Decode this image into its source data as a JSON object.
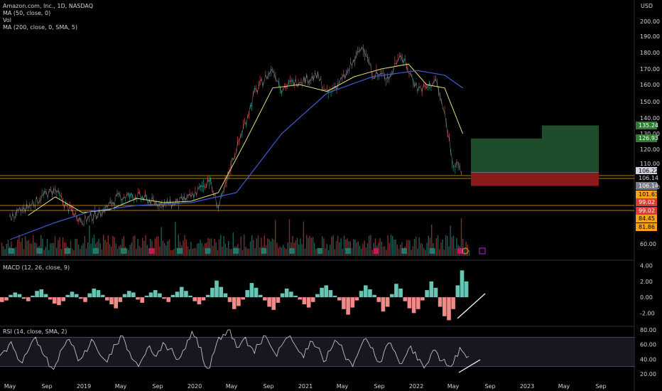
{
  "header": {
    "symbol_line": "Amazon.com, Inc., 1D, NASDAQ",
    "indicators": [
      "MA (50, close, 0)",
      "Vol",
      "MA (200, close, 0, SMA, 5)"
    ],
    "currency": "USD"
  },
  "panes": {
    "macd_label": "MACD (12, 26, close, 9)",
    "rsi_label": "RSI (14, close, SMA, 2)"
  },
  "colors": {
    "background": "#000000",
    "price_line": "#d1d4dc",
    "ma50": "#e4e07a",
    "ma200": "#3f5bd6",
    "bull": "#26a69a",
    "bear": "#ef5350",
    "orange_line": "#f7a21b",
    "profit_zone": "#1e4d2b",
    "loss_zone": "#8b1a1a"
  },
  "chart_data": [
    {
      "type": "line",
      "name": "price",
      "x_ticks": [
        "May",
        "Sep",
        "2019",
        "May",
        "Sep",
        "2020",
        "May",
        "Sep",
        "2021",
        "May",
        "Sep",
        "2022",
        "May",
        "Sep",
        "2023",
        "May",
        "Sep"
      ],
      "y_ticks": [
        60.0,
        100.0,
        110.0,
        120.0,
        130.0,
        140.0,
        150.0,
        160.0,
        170.0,
        180.0,
        190.0,
        200.0
      ],
      "y_range": [
        55,
        205
      ],
      "price_series": [
        {
          "x": "2018-04",
          "y": 78
        },
        {
          "x": "2018-06",
          "y": 86
        },
        {
          "x": "2018-08",
          "y": 95
        },
        {
          "x": "2018-09",
          "y": 98
        },
        {
          "x": "2018-10",
          "y": 88
        },
        {
          "x": "2018-12",
          "y": 76
        },
        {
          "x": "2019-02",
          "y": 82
        },
        {
          "x": "2019-04",
          "y": 93
        },
        {
          "x": "2019-06",
          "y": 94
        },
        {
          "x": "2019-08",
          "y": 89
        },
        {
          "x": "2019-10",
          "y": 88
        },
        {
          "x": "2019-12",
          "y": 93
        },
        {
          "x": "2020-02",
          "y": 104
        },
        {
          "x": "2020-03",
          "y": 86
        },
        {
          "x": "2020-05",
          "y": 120
        },
        {
          "x": "2020-07",
          "y": 155
        },
        {
          "x": "2020-09",
          "y": 170
        },
        {
          "x": "2020-10",
          "y": 158
        },
        {
          "x": "2020-12",
          "y": 163
        },
        {
          "x": "2021-02",
          "y": 165
        },
        {
          "x": "2021-03",
          "y": 154
        },
        {
          "x": "2021-05",
          "y": 165
        },
        {
          "x": "2021-07",
          "y": 185
        },
        {
          "x": "2021-08",
          "y": 167
        },
        {
          "x": "2021-10",
          "y": 165
        },
        {
          "x": "2021-11",
          "y": 180
        },
        {
          "x": "2022-01",
          "y": 158
        },
        {
          "x": "2022-02",
          "y": 158
        },
        {
          "x": "2022-03",
          "y": 163
        },
        {
          "x": "2022-04",
          "y": 142
        },
        {
          "x": "2022-05",
          "y": 110
        },
        {
          "x": "2022-06",
          "y": 106
        }
      ],
      "ma50_series": [
        {
          "x": "2018-06",
          "y": 80
        },
        {
          "x": "2018-09",
          "y": 93
        },
        {
          "x": "2018-12",
          "y": 82
        },
        {
          "x": "2019-03",
          "y": 84
        },
        {
          "x": "2019-06",
          "y": 92
        },
        {
          "x": "2019-09",
          "y": 89
        },
        {
          "x": "2019-12",
          "y": 90
        },
        {
          "x": "2020-03",
          "y": 96
        },
        {
          "x": "2020-06",
          "y": 125
        },
        {
          "x": "2020-09",
          "y": 158
        },
        {
          "x": "2020-12",
          "y": 160
        },
        {
          "x": "2021-03",
          "y": 156
        },
        {
          "x": "2021-06",
          "y": 165
        },
        {
          "x": "2021-09",
          "y": 170
        },
        {
          "x": "2021-12",
          "y": 173
        },
        {
          "x": "2022-02",
          "y": 160
        },
        {
          "x": "2022-04",
          "y": 158
        },
        {
          "x": "2022-06",
          "y": 130
        }
      ],
      "ma200_series": [
        {
          "x": "2018-04",
          "y": 63
        },
        {
          "x": "2018-09",
          "y": 75
        },
        {
          "x": "2019-01",
          "y": 83
        },
        {
          "x": "2019-06",
          "y": 87
        },
        {
          "x": "2019-12",
          "y": 89
        },
        {
          "x": "2020-05",
          "y": 96
        },
        {
          "x": "2020-10",
          "y": 130
        },
        {
          "x": "2021-03",
          "y": 155
        },
        {
          "x": "2021-08",
          "y": 165
        },
        {
          "x": "2022-01",
          "y": 169
        },
        {
          "x": "2022-04",
          "y": 166
        },
        {
          "x": "2022-06",
          "y": 158
        }
      ],
      "position": {
        "entry": 106.22,
        "targets": [
          126.93,
          135.24
        ],
        "stop": 101.63
      },
      "price_labels": [
        {
          "value": "135.24",
          "color": "#2e7d32",
          "text_color": "#ffffff"
        },
        {
          "value": "126.93",
          "color": "#2e7d32",
          "text_color": "#ffffff"
        },
        {
          "value": "106.22",
          "color": "#d1d4dc",
          "text_color": "#000000"
        },
        {
          "value": "106.14",
          "color": "#000000",
          "text_color": "#d1d4dc"
        },
        {
          "value": "106.14",
          "color": "#787b86",
          "text_color": "#ffffff"
        },
        {
          "value": "101.63",
          "color": "#f7a21b",
          "text_color": "#000000"
        },
        {
          "value": "99.02",
          "color": "#e53935",
          "text_color": "#ffffff"
        },
        {
          "value": "99.02",
          "color": "#e53935",
          "text_color": "#ffffff"
        },
        {
          "value": "84.45",
          "color": "#f7a21b",
          "text_color": "#000000"
        },
        {
          "value": "81.86",
          "color": "#f7a21b",
          "text_color": "#000000"
        }
      ],
      "volume_max_note": "volume bars shown as overlay at bottom of price pane"
    },
    {
      "type": "bar",
      "name": "MACD histogram",
      "y_ticks": [
        4.0,
        2.0,
        0.0,
        -2.0
      ],
      "y_range": [
        -3.4,
        4.5
      ],
      "histogram": [
        -0.6,
        -0.4,
        0.3,
        0.6,
        0.4,
        -0.2,
        -0.5,
        0.2,
        0.8,
        1.0,
        0.4,
        -0.3,
        -0.8,
        -1.0,
        -0.5,
        0.3,
        0.7,
        0.4,
        -0.2,
        -0.6,
        0.5,
        1.1,
        0.9,
        0.3,
        -0.4,
        -0.9,
        -1.4,
        -0.6,
        0.4,
        0.8,
        0.6,
        -0.3,
        -0.7,
        0.2,
        0.6,
        0.9,
        0.5,
        -0.2,
        -0.6,
        0.3,
        0.7,
        1.3,
        0.8,
        0.2,
        -0.5,
        -0.9,
        -0.4,
        0.3,
        1.2,
        2.1,
        1.3,
        0.5,
        -0.6,
        -1.5,
        -1.1,
        -0.3,
        0.9,
        1.8,
        1.2,
        0.3,
        -0.4,
        -1.2,
        -1.6,
        -0.7,
        0.5,
        1.1,
        0.7,
        0.2,
        -0.3,
        -0.9,
        -1.3,
        -0.6,
        0.4,
        1.2,
        1.5,
        0.9,
        0.2,
        -0.4,
        -1.5,
        -2.2,
        -1.3,
        -0.4,
        0.8,
        1.5,
        1.0,
        0.3,
        -0.6,
        -1.8,
        -1.2,
        0.4,
        1.7,
        1.1,
        -0.5,
        -1.4,
        -2.0,
        -1.5,
        -0.4,
        0.9,
        2.0,
        1.2,
        -1.2,
        -2.4,
        -2.9,
        -1.5,
        1.5,
        3.4,
        2.0
      ]
    },
    {
      "type": "line",
      "name": "RSI",
      "y_ticks": [
        80.0,
        60.0,
        40.0,
        20.0
      ],
      "y_range": [
        18,
        82
      ],
      "band": [
        30,
        70
      ],
      "values": [
        45,
        52,
        60,
        55,
        40,
        35,
        48,
        62,
        70,
        58,
        44,
        30,
        26,
        38,
        55,
        66,
        60,
        48,
        40,
        52,
        58,
        64,
        50,
        42,
        36,
        47,
        60,
        72,
        64,
        50,
        38,
        30,
        42,
        55,
        50,
        44,
        52,
        60,
        54,
        46,
        40,
        52,
        66,
        78,
        70,
        56,
        30,
        28,
        50,
        70,
        74,
        80,
        68,
        56,
        62,
        70,
        58,
        48,
        60,
        72,
        66,
        54,
        44,
        58,
        68,
        72,
        60,
        50,
        42,
        54,
        64,
        56,
        46,
        38,
        52,
        66,
        60,
        48,
        40,
        30,
        45,
        60,
        68,
        56,
        44,
        36,
        50,
        62,
        54,
        42,
        34,
        46,
        58,
        50,
        40,
        28,
        36,
        52,
        48,
        38,
        32,
        30,
        45,
        56,
        48,
        44
      ]
    }
  ]
}
